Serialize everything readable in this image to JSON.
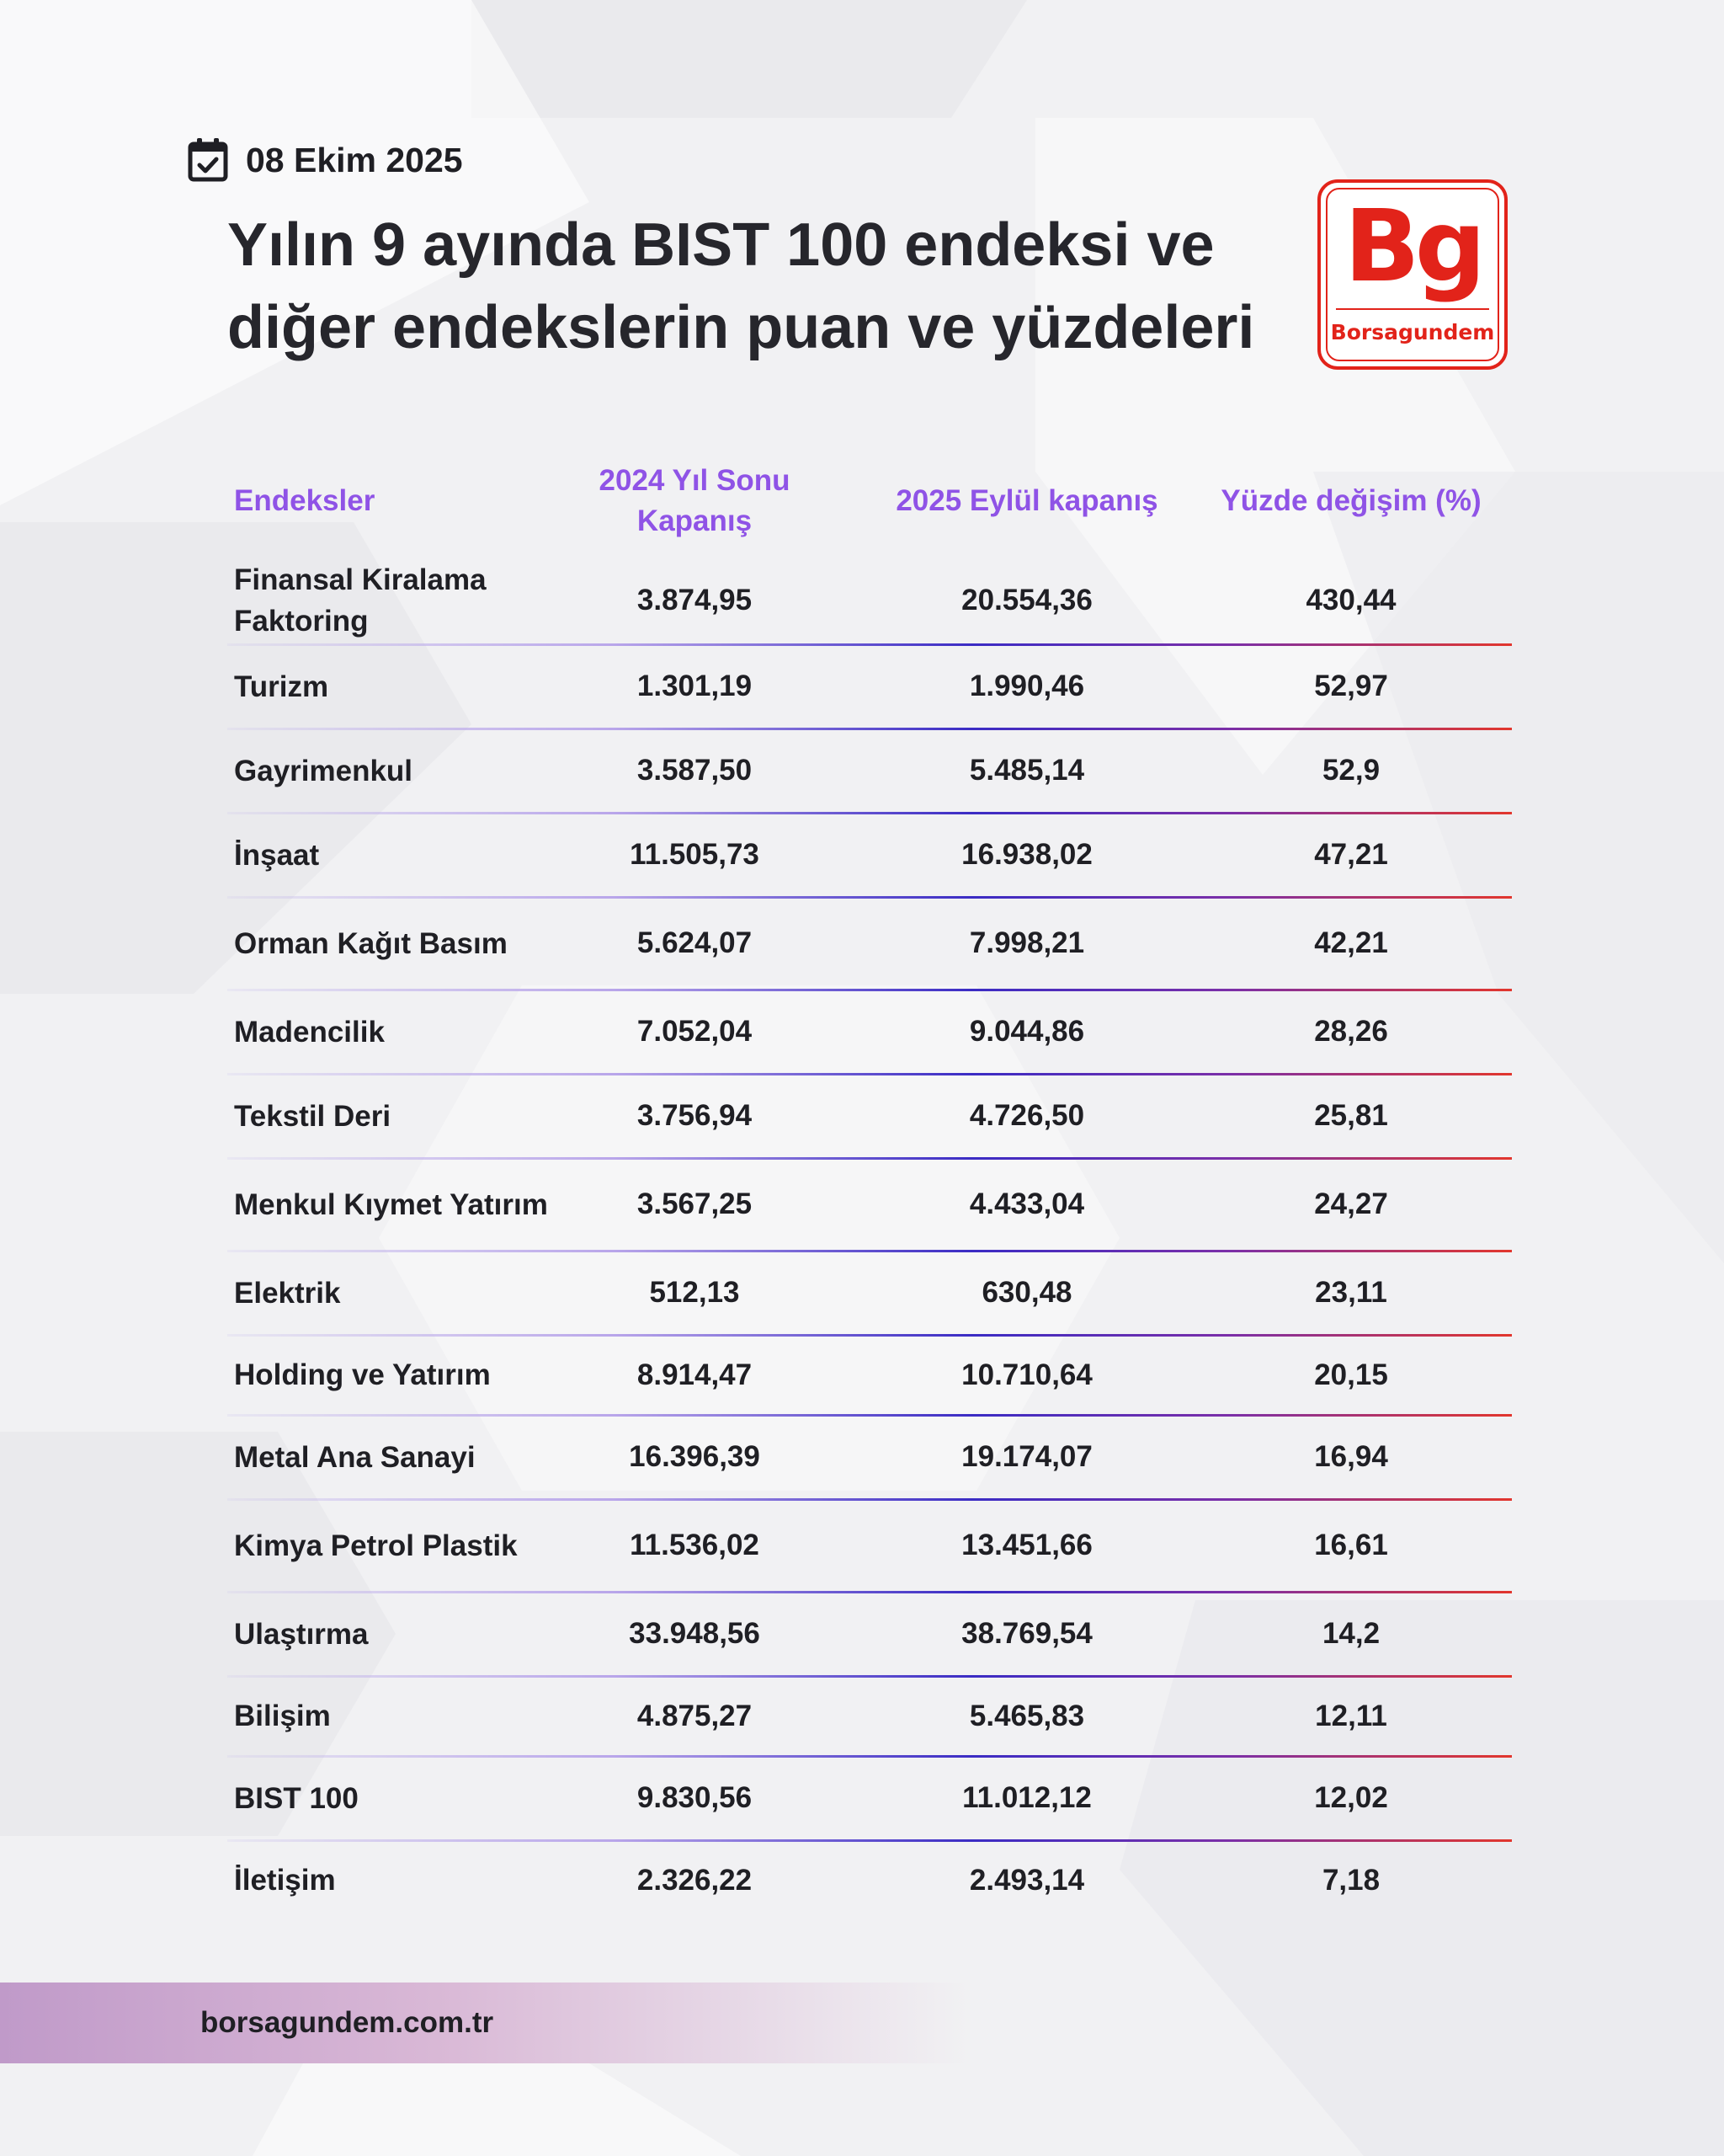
{
  "header": {
    "date": "08 Ekim 2025",
    "title": "Yılın 9 ayında BIST 100 endeksi ve diğer endekslerin puan ve yüzdeleri"
  },
  "logo": {
    "mark": "Bg",
    "wordmark": "Borsagundem",
    "color": "#e2231a"
  },
  "table": {
    "headers": {
      "name": "Endeksler",
      "close2024": "2024 Yıl Sonu Kapanış",
      "close2025": "2025 Eylül kapanış",
      "change": "Yüzde değişim (%)"
    },
    "rows": [
      {
        "name": "Finansal Kiralama Faktoring",
        "close2024": "3.874,95",
        "close2025": "20.554,36",
        "change": "430,44"
      },
      {
        "name": "Turizm",
        "close2024": "1.301,19",
        "close2025": "1.990,46",
        "change": "52,97"
      },
      {
        "name": "Gayrimenkul",
        "close2024": "3.587,50",
        "close2025": "5.485,14",
        "change": "52,9"
      },
      {
        "name": "İnşaat",
        "close2024": "11.505,73",
        "close2025": "16.938,02",
        "change": "47,21"
      },
      {
        "name": "Orman Kağıt Basım",
        "close2024": "5.624,07",
        "close2025": "7.998,21",
        "change": "42,21"
      },
      {
        "name": "Madencilik",
        "close2024": "7.052,04",
        "close2025": "9.044,86",
        "change": "28,26"
      },
      {
        "name": "Tekstil Deri",
        "close2024": "3.756,94",
        "close2025": "4.726,50",
        "change": "25,81"
      },
      {
        "name": "Menkul Kıymet Yatırım",
        "close2024": "3.567,25",
        "close2025": "4.433,04",
        "change": "24,27"
      },
      {
        "name": "Elektrik",
        "close2024": "512,13",
        "close2025": "630,48",
        "change": "23,11"
      },
      {
        "name": "Holding ve Yatırım",
        "close2024": "8.914,47",
        "close2025": "10.710,64",
        "change": "20,15"
      },
      {
        "name": "Metal Ana Sanayi",
        "close2024": "16.396,39",
        "close2025": "19.174,07",
        "change": "16,94"
      },
      {
        "name": "Kimya Petrol Plastik",
        "close2024": "11.536,02",
        "close2025": "13.451,66",
        "change": "16,61"
      },
      {
        "name": "Ulaştırma",
        "close2024": "33.948,56",
        "close2025": "38.769,54",
        "change": "14,2"
      },
      {
        "name": "Bilişim",
        "close2024": "4.875,27",
        "close2025": "5.465,83",
        "change": "12,11"
      },
      {
        "name": "BIST 100",
        "close2024": "9.830,56",
        "close2025": "11.012,12",
        "change": "12,02"
      },
      {
        "name": "İletişim",
        "close2024": "2.326,22",
        "close2025": "2.493,14",
        "change": "7,18"
      }
    ]
  },
  "footer": {
    "url": "borsagundem.com.tr"
  }
}
